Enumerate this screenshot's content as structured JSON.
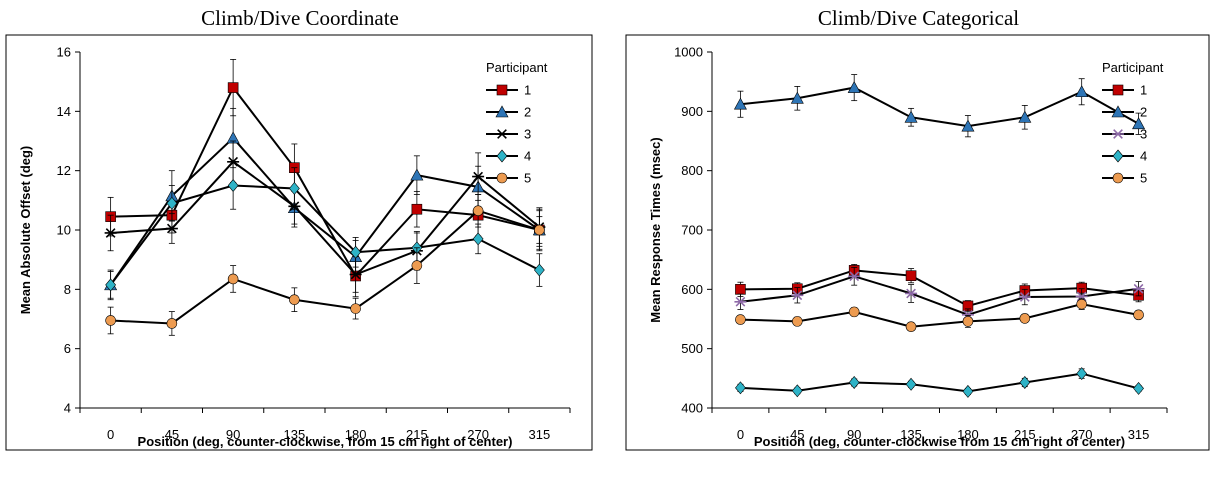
{
  "chart_data": [
    {
      "type": "line",
      "title": "Climb/Dive Coordinate",
      "xlabel": "Position (deg, counter-clockwise, from 15 cm right of center)",
      "ylabel": "Mean Absolute Offset  (deg)",
      "categories": [
        "0",
        "45",
        "90",
        "135",
        "180",
        "215",
        "270",
        "315"
      ],
      "yticks": [
        "4",
        "6",
        "8",
        "10",
        "12",
        "14",
        "16"
      ],
      "ylim": [
        4,
        16
      ],
      "legend_title": "Participant",
      "legend_position": "top-right",
      "grid": false,
      "series": [
        {
          "name": "1",
          "color": "#c00000",
          "marker": "square",
          "values": [
            10.45,
            10.5,
            14.8,
            12.1,
            8.45,
            10.7,
            10.5,
            10.0
          ],
          "errors": [
            0.65,
            0.6,
            0.95,
            0.8,
            0.7,
            0.6,
            0.7,
            0.65
          ]
        },
        {
          "name": "2",
          "color": "#2e75b6",
          "marker": "triangle",
          "values": [
            8.15,
            11.15,
            13.1,
            10.75,
            9.1,
            11.85,
            11.45,
            10.0
          ],
          "errors": [
            0.5,
            0.85,
            1.0,
            0.65,
            0.55,
            0.65,
            0.7,
            0.7
          ]
        },
        {
          "name": "3",
          "color": "#000000",
          "marker": "star",
          "values": [
            9.9,
            10.05,
            12.3,
            10.8,
            8.5,
            9.3,
            11.8,
            10.1
          ],
          "errors": [
            0.6,
            0.5,
            0.7,
            0.6,
            0.6,
            0.65,
            0.8,
            0.65
          ]
        },
        {
          "name": "4",
          "color": "#2eb3c7",
          "marker": "diamond",
          "values": [
            8.15,
            10.9,
            11.5,
            11.4,
            9.25,
            9.4,
            9.7,
            8.65
          ],
          "errors": [
            0.45,
            0.6,
            0.8,
            0.7,
            0.5,
            0.5,
            0.5,
            0.55
          ]
        },
        {
          "name": "5",
          "color": "#ed9b50",
          "marker": "circle",
          "values": [
            6.95,
            6.85,
            8.35,
            7.65,
            7.35,
            8.8,
            10.65,
            10.0
          ],
          "errors": [
            0.45,
            0.4,
            0.45,
            0.4,
            0.35,
            0.6,
            0.55,
            0.45
          ]
        }
      ]
    },
    {
      "type": "line",
      "title": "Climb/Dive Categorical",
      "xlabel": "Position (deg, counter-clockwise from 15 cm right of center)",
      "ylabel": "Mean Response Times   (msec)",
      "categories": [
        "0",
        "45",
        "90",
        "135",
        "180",
        "215",
        "270",
        "315"
      ],
      "yticks": [
        "400",
        "500",
        "600",
        "700",
        "800",
        "900",
        "1000"
      ],
      "ylim": [
        400,
        1000
      ],
      "legend_title": "Participant",
      "legend_position": "top-right",
      "grid": false,
      "series": [
        {
          "name": "1",
          "color": "#c00000",
          "marker": "square",
          "values": [
            600,
            601,
            632,
            623,
            572,
            598,
            602,
            590
          ],
          "errors": [
            12,
            10,
            10,
            12,
            9,
            11,
            10,
            11
          ]
        },
        {
          "name": "2",
          "color": "#2e75b6",
          "marker": "triangle",
          "values": [
            912,
            922,
            940,
            890,
            875,
            890,
            933,
            879
          ],
          "errors": [
            22,
            20,
            22,
            15,
            18,
            20,
            22,
            18
          ]
        },
        {
          "name": "3",
          "color": "#8e6aa8",
          "marker": "star",
          "values": [
            579,
            590,
            622,
            593,
            557,
            587,
            588,
            601
          ],
          "errors": [
            13,
            13,
            15,
            15,
            10,
            13,
            13,
            12
          ]
        },
        {
          "name": "4",
          "color": "#2eb3c7",
          "marker": "diamond",
          "values": [
            434,
            429,
            443,
            440,
            428,
            443,
            458,
            433
          ],
          "errors": [
            6,
            5,
            6,
            5,
            5,
            7,
            8,
            5
          ]
        },
        {
          "name": "5",
          "color": "#ed9b50",
          "marker": "circle",
          "values": [
            549,
            546,
            562,
            537,
            546,
            551,
            575,
            557
          ],
          "errors": [
            6,
            7,
            7,
            5,
            10,
            7,
            9,
            7
          ]
        }
      ]
    }
  ]
}
